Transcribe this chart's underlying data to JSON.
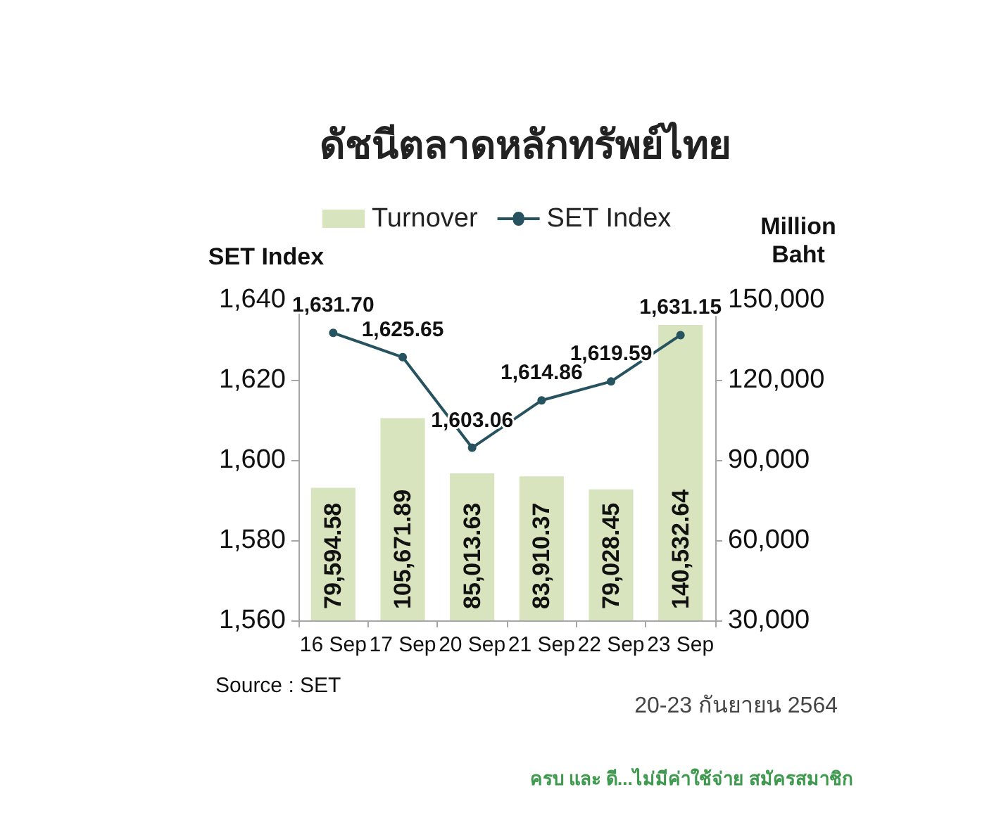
{
  "chart_data": {
    "type": "bar",
    "title": "ดัชนีตลาดหลักทรัพย์ไทย",
    "ylabel": "SET Index",
    "y2label": "Million Baht",
    "categories": [
      "16 Sep",
      "17 Sep",
      "20 Sep",
      "21 Sep",
      "22 Sep",
      "23 Sep"
    ],
    "series": [
      {
        "name": "Turnover",
        "axis": "y2",
        "color": "#d7e4bd",
        "values": [
          79594.58,
          105671.89,
          85013.63,
          83910.37,
          79028.45,
          140532.64
        ],
        "value_labels": [
          "79,594.58",
          "105,671.89",
          "85,013.63",
          "83,910.37",
          "79,028.45",
          "140,532.64"
        ]
      },
      {
        "name": "SET Index",
        "type": "line",
        "color": "#26535f",
        "values": [
          1631.7,
          1625.65,
          1603.06,
          1614.86,
          1619.59,
          1631.15
        ],
        "value_labels": [
          "1,631.70",
          "1,625.65",
          "1,603.06",
          "1,614.86",
          "1,619.59",
          "1,631.15"
        ]
      }
    ],
    "ylim": [
      1560,
      1640
    ],
    "yticks": [
      {
        "value": 1560,
        "label": "1,560"
      },
      {
        "value": 1580,
        "label": "1,580"
      },
      {
        "value": 1600,
        "label": "1,600"
      },
      {
        "value": 1620,
        "label": "1,620"
      },
      {
        "value": 1640,
        "label": "1,640"
      }
    ],
    "y2lim": [
      30000,
      150000
    ],
    "y2ticks": [
      {
        "value": 30000,
        "label": "30,000"
      },
      {
        "value": 60000,
        "label": "60,000"
      },
      {
        "value": 90000,
        "label": "90,000"
      },
      {
        "value": 120000,
        "label": "120,000"
      },
      {
        "value": 150000,
        "label": "150,000"
      }
    ],
    "annotations": [
      "Source : SET",
      "20-23 กันยายน 2564",
      "ครบ และ ดี...ไม่มีค่าใช้จ่าย สมัครสมาชิก"
    ],
    "legend": "top",
    "grid": false,
    "marker": "circle",
    "line_style": "solid"
  }
}
